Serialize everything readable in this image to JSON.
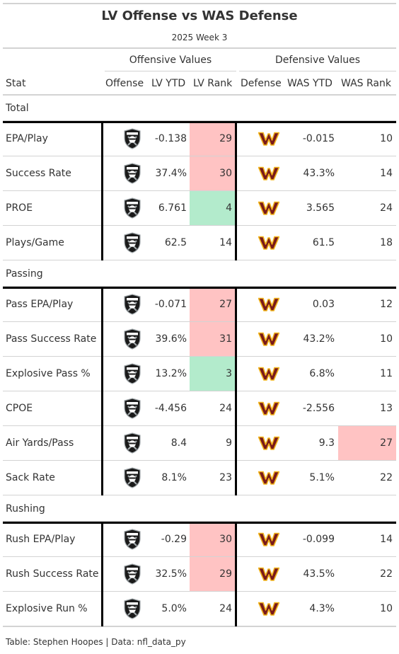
{
  "title": "LV Offense vs WAS Defense",
  "subtitle": "2025 Week 3",
  "spanners": {
    "offense": "Offensive Values",
    "defense": "Defensive Values"
  },
  "columns": [
    "Stat",
    "Offense",
    "LV YTD",
    "LV Rank",
    "Defense",
    "WAS YTD",
    "WAS Rank"
  ],
  "footer": "Table: Stephen Hoopes | Data: nfl_data_py",
  "colors": {
    "bad_rank": "#ffc3c3",
    "good_rank": "#b3ebcc",
    "raiders_logo": "#000000",
    "commanders_logo": "#7a1a1a",
    "commanders_accent": "#f2b51e"
  },
  "icons": {
    "offense_logo": "raiders-logo",
    "defense_logo": "commanders-logo"
  },
  "chart_data": {
    "type": "table",
    "groups": [
      {
        "name": "Total",
        "rows": [
          {
            "stat": "EPA/Play",
            "lv_ytd": "-0.138",
            "lv_rank": 29,
            "lv_rank_fill": "bad",
            "was_ytd": "-0.015",
            "was_rank": 10,
            "was_rank_fill": ""
          },
          {
            "stat": "Success Rate",
            "lv_ytd": "37.4%",
            "lv_rank": 30,
            "lv_rank_fill": "bad",
            "was_ytd": "43.3%",
            "was_rank": 14,
            "was_rank_fill": ""
          },
          {
            "stat": "PROE",
            "lv_ytd": "6.761",
            "lv_rank": 4,
            "lv_rank_fill": "good",
            "was_ytd": "3.565",
            "was_rank": 24,
            "was_rank_fill": ""
          },
          {
            "stat": "Plays/Game",
            "lv_ytd": "62.5",
            "lv_rank": 14,
            "lv_rank_fill": "",
            "was_ytd": "61.5",
            "was_rank": 18,
            "was_rank_fill": ""
          }
        ]
      },
      {
        "name": "Passing",
        "rows": [
          {
            "stat": "Pass EPA/Play",
            "lv_ytd": "-0.071",
            "lv_rank": 27,
            "lv_rank_fill": "bad",
            "was_ytd": "0.03",
            "was_rank": 12,
            "was_rank_fill": ""
          },
          {
            "stat": "Pass Success Rate",
            "lv_ytd": "39.6%",
            "lv_rank": 31,
            "lv_rank_fill": "bad",
            "was_ytd": "43.2%",
            "was_rank": 10,
            "was_rank_fill": ""
          },
          {
            "stat": "Explosive Pass %",
            "lv_ytd": "13.2%",
            "lv_rank": 3,
            "lv_rank_fill": "good",
            "was_ytd": "6.8%",
            "was_rank": 11,
            "was_rank_fill": ""
          },
          {
            "stat": "CPOE",
            "lv_ytd": "-4.456",
            "lv_rank": 24,
            "lv_rank_fill": "",
            "was_ytd": "-2.556",
            "was_rank": 13,
            "was_rank_fill": ""
          },
          {
            "stat": "Air Yards/Pass",
            "lv_ytd": "8.4",
            "lv_rank": 9,
            "lv_rank_fill": "",
            "was_ytd": "9.3",
            "was_rank": 27,
            "was_rank_fill": "bad"
          },
          {
            "stat": "Sack Rate",
            "lv_ytd": "8.1%",
            "lv_rank": 23,
            "lv_rank_fill": "",
            "was_ytd": "5.1%",
            "was_rank": 22,
            "was_rank_fill": ""
          }
        ]
      },
      {
        "name": "Rushing",
        "rows": [
          {
            "stat": "Rush EPA/Play",
            "lv_ytd": "-0.29",
            "lv_rank": 30,
            "lv_rank_fill": "bad",
            "was_ytd": "-0.099",
            "was_rank": 14,
            "was_rank_fill": ""
          },
          {
            "stat": "Rush Success Rate",
            "lv_ytd": "32.5%",
            "lv_rank": 29,
            "lv_rank_fill": "bad",
            "was_ytd": "43.5%",
            "was_rank": 22,
            "was_rank_fill": ""
          },
          {
            "stat": "Explosive Run %",
            "lv_ytd": "5.0%",
            "lv_rank": 24,
            "lv_rank_fill": "",
            "was_ytd": "4.3%",
            "was_rank": 10,
            "was_rank_fill": ""
          }
        ]
      }
    ]
  }
}
